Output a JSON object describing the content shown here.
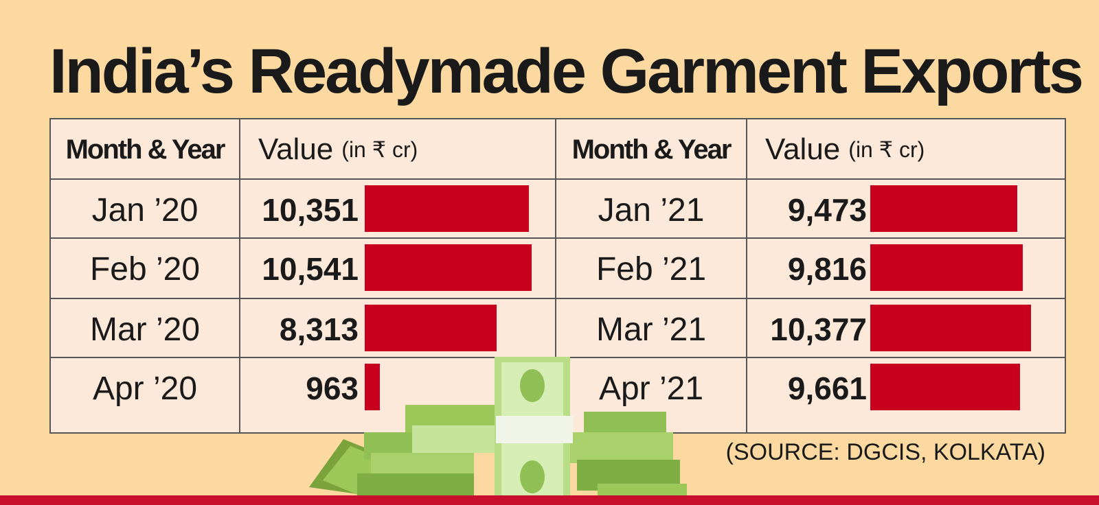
{
  "title": "India’s Readymade Garment Exports",
  "source": "(SOURCE: DGCIS, KOLKATA)",
  "headers": {
    "month": "Month & Year",
    "value": "Value",
    "unit": "(in ₹ cr)"
  },
  "chart_data": {
    "type": "bar",
    "title": "India’s Readymade Garment Exports",
    "ylabel": "Value (in ₹ cr)",
    "columns": [
      {
        "categories": [
          "Jan ’20",
          "Feb ’20",
          "Mar ’20",
          "Apr ’20"
        ],
        "values": [
          10351,
          10541,
          8313,
          963
        ],
        "labels": [
          "10,351",
          "10,541",
          "8,313",
          "963"
        ]
      },
      {
        "categories": [
          "Jan ’21",
          "Feb ’21",
          "Mar ’21",
          "Apr ’21"
        ],
        "values": [
          9473,
          9816,
          10377,
          9661
        ],
        "labels": [
          "9,473",
          "9,816",
          "10,377",
          "9,661"
        ]
      }
    ]
  },
  "colors": {
    "background": "#fcd9a0",
    "table": "#fde9d9",
    "bar": "#c8001e",
    "stripe": "#c8102e"
  }
}
